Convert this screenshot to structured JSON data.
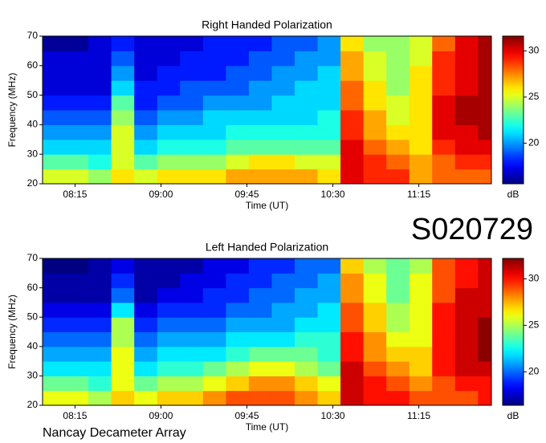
{
  "chart_data": [
    {
      "type": "heatmap",
      "title": "Right Handed Polarization",
      "x_label": "Time (UT)",
      "y_label": "Frequency (MHz)",
      "colorbar_label": "dB",
      "colormap": "jet",
      "x_bins": [
        478,
        490,
        502,
        514,
        526,
        538,
        550,
        562,
        574,
        586,
        598,
        610,
        622,
        634,
        646,
        658,
        670,
        682,
        694,
        706,
        713
      ],
      "y_bins": [
        20,
        25,
        30,
        35,
        40,
        45,
        50,
        55,
        60,
        65,
        70
      ],
      "values": [
        [
          25,
          25,
          24,
          26,
          25,
          26,
          26,
          26,
          27,
          27,
          27,
          27,
          26,
          30,
          29,
          29,
          27,
          28,
          28,
          28
        ],
        [
          23,
          23,
          22,
          25,
          23,
          24,
          24,
          24,
          25,
          26,
          26,
          25,
          25,
          30,
          29,
          28,
          27,
          28,
          29,
          29
        ],
        [
          21,
          21,
          21,
          25,
          21,
          22,
          22,
          22,
          23,
          23,
          23,
          23,
          23,
          30,
          28,
          27,
          26,
          29,
          30,
          30
        ],
        [
          20,
          20,
          20,
          25,
          20,
          21,
          21,
          21,
          22,
          22,
          22,
          22,
          22,
          29,
          27,
          26,
          26,
          30,
          30,
          31
        ],
        [
          19,
          19,
          19,
          24,
          19,
          20,
          20,
          21,
          21,
          21,
          21,
          21,
          22,
          29,
          27,
          25,
          26,
          30,
          31,
          31
        ],
        [
          18,
          18,
          18,
          23,
          18,
          19,
          19,
          20,
          20,
          20,
          21,
          21,
          21,
          28,
          26,
          25,
          26,
          30,
          31,
          31
        ],
        [
          17,
          17,
          17,
          21,
          18,
          18,
          19,
          19,
          19,
          20,
          20,
          21,
          21,
          28,
          26,
          24,
          26,
          29,
          30,
          31
        ],
        [
          17,
          17,
          17,
          20,
          17,
          18,
          18,
          18,
          19,
          19,
          20,
          20,
          21,
          27,
          25,
          24,
          26,
          29,
          30,
          31
        ],
        [
          17,
          17,
          17,
          19,
          17,
          17,
          18,
          18,
          18,
          19,
          19,
          20,
          20,
          27,
          25,
          24,
          25,
          29,
          30,
          31
        ],
        [
          16,
          16,
          17,
          18,
          17,
          17,
          17,
          18,
          18,
          18,
          19,
          19,
          20,
          26,
          24,
          24,
          25,
          28,
          30,
          31
        ]
      ],
      "xlim": [
        478,
        713
      ],
      "ylim": [
        20,
        70
      ],
      "xticks": [
        {
          "value": 495,
          "label": "08:15"
        },
        {
          "value": 540,
          "label": "09:00"
        },
        {
          "value": 585,
          "label": "09:45"
        },
        {
          "value": 630,
          "label": "10:30"
        },
        {
          "value": 675,
          "label": "11:15"
        }
      ],
      "yticks": [
        20,
        30,
        40,
        50,
        60,
        70
      ],
      "clim": [
        15.6,
        31.6
      ],
      "cticks": [
        20,
        25,
        30
      ]
    },
    {
      "type": "heatmap",
      "title": "Left Handed Polarization",
      "x_label": "Time (UT)",
      "y_label": "Frequency (MHz)",
      "colorbar_label": "dB",
      "colormap": "jet",
      "x_bins": [
        478,
        490,
        502,
        514,
        526,
        538,
        550,
        562,
        574,
        586,
        598,
        610,
        622,
        634,
        646,
        658,
        670,
        682,
        694,
        706,
        713
      ],
      "y_bins": [
        20,
        25,
        30,
        35,
        40,
        45,
        50,
        55,
        60,
        65,
        70
      ],
      "values": [
        [
          26,
          26,
          25,
          27,
          26,
          27,
          27,
          28,
          29,
          29,
          29,
          28,
          27,
          31,
          30,
          30,
          29,
          29,
          29,
          30
        ],
        [
          24,
          24,
          23,
          26,
          24,
          25,
          25,
          26,
          27,
          28,
          28,
          27,
          26,
          31,
          30,
          29,
          28,
          29,
          30,
          30
        ],
        [
          22,
          22,
          22,
          26,
          22,
          23,
          23,
          24,
          25,
          26,
          26,
          25,
          24,
          31,
          29,
          28,
          27,
          30,
          31,
          31
        ],
        [
          21,
          21,
          21,
          26,
          21,
          22,
          22,
          22,
          23,
          24,
          24,
          24,
          23,
          30,
          28,
          27,
          27,
          30,
          31,
          32
        ],
        [
          20,
          20,
          20,
          25,
          20,
          21,
          21,
          21,
          22,
          22,
          22,
          23,
          23,
          30,
          28,
          26,
          26,
          30,
          31,
          32
        ],
        [
          19,
          19,
          19,
          25,
          19,
          20,
          20,
          20,
          21,
          21,
          21,
          22,
          22,
          29,
          27,
          25,
          26,
          30,
          31,
          32
        ],
        [
          18,
          18,
          18,
          22,
          18,
          19,
          19,
          19,
          20,
          20,
          21,
          21,
          22,
          29,
          27,
          25,
          26,
          30,
          31,
          31
        ],
        [
          17,
          17,
          17,
          20,
          17,
          18,
          18,
          19,
          19,
          20,
          20,
          21,
          21,
          28,
          26,
          24,
          26,
          29,
          31,
          31
        ],
        [
          17,
          17,
          17,
          19,
          17,
          17,
          18,
          18,
          19,
          19,
          20,
          20,
          21,
          28,
          26,
          24,
          26,
          29,
          30,
          31
        ],
        [
          16,
          16,
          17,
          18,
          17,
          17,
          17,
          18,
          18,
          19,
          19,
          20,
          20,
          27,
          25,
          24,
          25,
          29,
          30,
          31
        ]
      ],
      "xlim": [
        478,
        713
      ],
      "ylim": [
        20,
        70
      ],
      "xticks": [
        {
          "value": 495,
          "label": "08:15"
        },
        {
          "value": 540,
          "label": "09:00"
        },
        {
          "value": 585,
          "label": "09:45"
        },
        {
          "value": 630,
          "label": "10:30"
        },
        {
          "value": 675,
          "label": "11:15"
        }
      ],
      "yticks": [
        20,
        30,
        40,
        50,
        60,
        70
      ],
      "clim": [
        16.4,
        32.2
      ],
      "cticks": [
        20,
        25,
        30
      ]
    }
  ],
  "stamp": "S020729",
  "footer": "Nancay Decameter Array"
}
